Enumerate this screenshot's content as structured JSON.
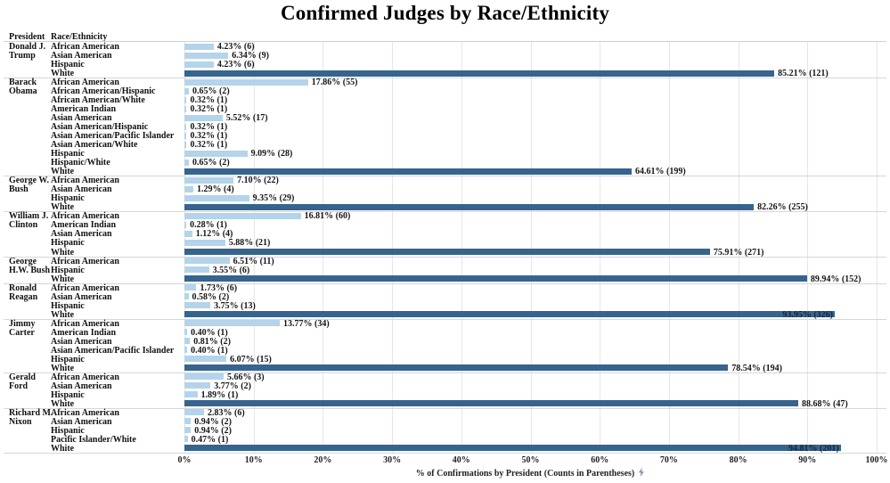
{
  "title": "Confirmed Judges by Race/Ethnicity",
  "columns": {
    "president": "President",
    "race": "Race/Ethnicity"
  },
  "axis": {
    "caption": "% of Confirmations by President (Counts in Parentheses)",
    "sort_icon": "lightning-icon"
  },
  "colors": {
    "bar_light": "#b3d4ea",
    "bar_dark": "#36648e",
    "gridline": "#e6e6e6",
    "separator": "#d5d7e0",
    "inside_label_text": "#16263c"
  },
  "chart_data": {
    "type": "bar",
    "orientation": "horizontal",
    "title": "Confirmed Judges by Race/Ethnicity",
    "xlabel": "% of Confirmations by President (Counts in Parentheses)",
    "xlim": [
      0,
      100
    ],
    "x_tick_labels": [
      "0%",
      "10%",
      "20%",
      "30%",
      "40%",
      "50%",
      "60%",
      "70%",
      "80%",
      "90%",
      "100%"
    ],
    "x_tick_values": [
      0,
      10,
      20,
      30,
      40,
      50,
      60,
      70,
      80,
      90,
      100
    ],
    "grid": true,
    "groups": [
      {
        "president": "Donald J.\nTrump",
        "rows": [
          {
            "race": "African American",
            "pct": 4.23,
            "count": 6,
            "label": "4.23% (6)",
            "shade": "light"
          },
          {
            "race": "Asian American",
            "pct": 6.34,
            "count": 9,
            "label": "6.34% (9)",
            "shade": "light"
          },
          {
            "race": "Hispanic",
            "pct": 4.23,
            "count": 6,
            "label": "4.23% (6)",
            "shade": "light"
          },
          {
            "race": "White",
            "pct": 85.21,
            "count": 121,
            "label": "85.21% (121)",
            "shade": "dark"
          }
        ]
      },
      {
        "president": "Barack\nObama",
        "rows": [
          {
            "race": "African American",
            "pct": 17.86,
            "count": 55,
            "label": "17.86% (55)",
            "shade": "light"
          },
          {
            "race": "African American/Hispanic",
            "pct": 0.65,
            "count": 2,
            "label": "0.65% (2)",
            "shade": "light"
          },
          {
            "race": "African American/White",
            "pct": 0.32,
            "count": 1,
            "label": "0.32% (1)",
            "shade": "light"
          },
          {
            "race": "American Indian",
            "pct": 0.32,
            "count": 1,
            "label": "0.32% (1)",
            "shade": "light"
          },
          {
            "race": "Asian American",
            "pct": 5.52,
            "count": 17,
            "label": "5.52% (17)",
            "shade": "light"
          },
          {
            "race": "Asian American/Hispanic",
            "pct": 0.32,
            "count": 1,
            "label": "0.32% (1)",
            "shade": "light"
          },
          {
            "race": "Asian American/Pacific Islander",
            "pct": 0.32,
            "count": 1,
            "label": "0.32% (1)",
            "shade": "light"
          },
          {
            "race": "Asian American/White",
            "pct": 0.32,
            "count": 1,
            "label": "0.32% (1)",
            "shade": "light"
          },
          {
            "race": "Hispanic",
            "pct": 9.09,
            "count": 28,
            "label": "9.09% (28)",
            "shade": "light"
          },
          {
            "race": "Hispanic/White",
            "pct": 0.65,
            "count": 2,
            "label": "0.65% (2)",
            "shade": "light"
          },
          {
            "race": "White",
            "pct": 64.61,
            "count": 199,
            "label": "64.61% (199)",
            "shade": "dark"
          }
        ]
      },
      {
        "president": "George W.\nBush",
        "rows": [
          {
            "race": "African American",
            "pct": 7.1,
            "count": 22,
            "label": "7.10% (22)",
            "shade": "light"
          },
          {
            "race": "Asian American",
            "pct": 1.29,
            "count": 4,
            "label": "1.29% (4)",
            "shade": "light"
          },
          {
            "race": "Hispanic",
            "pct": 9.35,
            "count": 29,
            "label": "9.35% (29)",
            "shade": "light"
          },
          {
            "race": "White",
            "pct": 82.26,
            "count": 255,
            "label": "82.26% (255)",
            "shade": "dark"
          }
        ]
      },
      {
        "president": "William J.\nClinton",
        "rows": [
          {
            "race": "African American",
            "pct": 16.81,
            "count": 60,
            "label": "16.81% (60)",
            "shade": "light"
          },
          {
            "race": "American Indian",
            "pct": 0.28,
            "count": 1,
            "label": "0.28% (1)",
            "shade": "light"
          },
          {
            "race": "Asian American",
            "pct": 1.12,
            "count": 4,
            "label": "1.12% (4)",
            "shade": "light"
          },
          {
            "race": "Hispanic",
            "pct": 5.88,
            "count": 21,
            "label": "5.88% (21)",
            "shade": "light"
          },
          {
            "race": "White",
            "pct": 75.91,
            "count": 271,
            "label": "75.91% (271)",
            "shade": "dark"
          }
        ]
      },
      {
        "president": "George\nH.W. Bush",
        "rows": [
          {
            "race": "African American",
            "pct": 6.51,
            "count": 11,
            "label": "6.51% (11)",
            "shade": "light"
          },
          {
            "race": "Hispanic",
            "pct": 3.55,
            "count": 6,
            "label": "3.55% (6)",
            "shade": "light"
          },
          {
            "race": "White",
            "pct": 89.94,
            "count": 152,
            "label": "89.94% (152)",
            "shade": "dark"
          }
        ]
      },
      {
        "president": "Ronald\nReagan",
        "rows": [
          {
            "race": "African American",
            "pct": 1.73,
            "count": 6,
            "label": "1.73% (6)",
            "shade": "light"
          },
          {
            "race": "Asian American",
            "pct": 0.58,
            "count": 2,
            "label": "0.58% (2)",
            "shade": "light"
          },
          {
            "race": "Hispanic",
            "pct": 3.75,
            "count": 13,
            "label": "3.75% (13)",
            "shade": "light"
          },
          {
            "race": "White",
            "pct": 93.95,
            "count": 326,
            "label": "93.95% (326)",
            "shade": "dark",
            "label_inside": true
          }
        ]
      },
      {
        "president": "Jimmy\nCarter",
        "rows": [
          {
            "race": "African American",
            "pct": 13.77,
            "count": 34,
            "label": "13.77% (34)",
            "shade": "light"
          },
          {
            "race": "American Indian",
            "pct": 0.4,
            "count": 1,
            "label": "0.40% (1)",
            "shade": "light"
          },
          {
            "race": "Asian American",
            "pct": 0.81,
            "count": 2,
            "label": "0.81% (2)",
            "shade": "light"
          },
          {
            "race": "Asian American/Pacific Islander",
            "pct": 0.4,
            "count": 1,
            "label": "0.40% (1)",
            "shade": "light"
          },
          {
            "race": "Hispanic",
            "pct": 6.07,
            "count": 15,
            "label": "6.07% (15)",
            "shade": "light"
          },
          {
            "race": "White",
            "pct": 78.54,
            "count": 194,
            "label": "78.54% (194)",
            "shade": "dark"
          }
        ]
      },
      {
        "president": "Gerald\nFord",
        "rows": [
          {
            "race": "African American",
            "pct": 5.66,
            "count": 3,
            "label": "5.66% (3)",
            "shade": "light"
          },
          {
            "race": "Asian American",
            "pct": 3.77,
            "count": 2,
            "label": "3.77% (2)",
            "shade": "light"
          },
          {
            "race": "Hispanic",
            "pct": 1.89,
            "count": 1,
            "label": "1.89% (1)",
            "shade": "light"
          },
          {
            "race": "White",
            "pct": 88.68,
            "count": 47,
            "label": "88.68% (47)",
            "shade": "dark"
          }
        ]
      },
      {
        "president": "Richard M.\nNixon",
        "rows": [
          {
            "race": "African American",
            "pct": 2.83,
            "count": 6,
            "label": "2.83% (6)",
            "shade": "light"
          },
          {
            "race": "Asian American",
            "pct": 0.94,
            "count": 2,
            "label": "0.94% (2)",
            "shade": "light"
          },
          {
            "race": "Hispanic",
            "pct": 0.94,
            "count": 2,
            "label": "0.94% (2)",
            "shade": "light"
          },
          {
            "race": "Pacific Islander/White",
            "pct": 0.47,
            "count": 1,
            "label": "0.47% (1)",
            "shade": "light"
          },
          {
            "race": "White",
            "pct": 94.81,
            "count": 201,
            "label": "94.81% (201)",
            "shade": "dark",
            "label_inside": true
          }
        ]
      }
    ]
  }
}
